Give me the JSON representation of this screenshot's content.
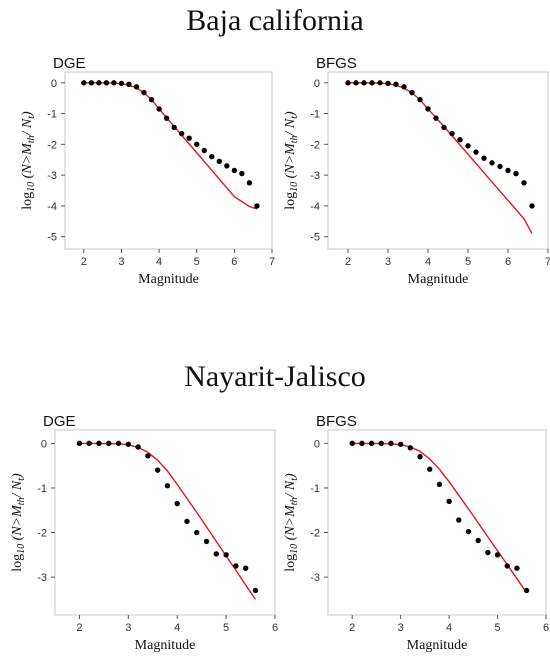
{
  "sections": [
    {
      "title": "Baja california"
    },
    {
      "title": "Nayarit-Jalisco"
    }
  ],
  "chart_data": [
    {
      "type": "scatter",
      "panel_label": "DGE",
      "xlabel": "Magnitude",
      "ylabel": "log10 (N>Mth/ Nt)",
      "xlim": [
        1.5,
        7
      ],
      "ylim": [
        -5.4,
        0.35
      ],
      "xticks": [
        2,
        3,
        4,
        5,
        6,
        7
      ],
      "yticks": [
        0,
        -1,
        -2,
        -3,
        -4,
        -5
      ],
      "points": {
        "color": "#000000",
        "x": [
          2.0,
          2.2,
          2.4,
          2.6,
          2.8,
          3.0,
          3.2,
          3.4,
          3.6,
          3.8,
          4.0,
          4.2,
          4.4,
          4.6,
          4.8,
          5.0,
          5.2,
          5.4,
          5.6,
          5.8,
          6.0,
          6.2,
          6.4,
          6.6
        ],
        "y": [
          0,
          0,
          0,
          0,
          0,
          -0.02,
          -0.05,
          -0.13,
          -0.32,
          -0.55,
          -0.85,
          -1.15,
          -1.45,
          -1.65,
          -1.8,
          -2.0,
          -2.2,
          -2.4,
          -2.55,
          -2.7,
          -2.85,
          -2.95,
          -3.25,
          -4.0
        ]
      },
      "fit": {
        "color": "#e8141c",
        "x": [
          2.0,
          2.4,
          2.8,
          3.0,
          3.2,
          3.4,
          3.6,
          3.8,
          4.0,
          4.4,
          4.8,
          5.2,
          5.6,
          6.0,
          6.4,
          6.6
        ],
        "y": [
          0,
          0,
          -0.01,
          -0.03,
          -0.08,
          -0.17,
          -0.33,
          -0.55,
          -0.85,
          -1.42,
          -1.99,
          -2.56,
          -3.13,
          -3.7,
          -4.02,
          -4.1
        ]
      }
    },
    {
      "type": "scatter",
      "panel_label": "BFGS",
      "xlabel": "Magnitude",
      "ylabel": "log10 (N>Mth/ Nt)",
      "xlim": [
        1.5,
        7
      ],
      "ylim": [
        -5.4,
        0.35
      ],
      "xticks": [
        2,
        3,
        4,
        5,
        6,
        7
      ],
      "yticks": [
        0,
        -1,
        -2,
        -3,
        -4,
        -5
      ],
      "points": {
        "color": "#000000",
        "x": [
          2.0,
          2.2,
          2.4,
          2.6,
          2.8,
          3.0,
          3.2,
          3.4,
          3.6,
          3.8,
          4.0,
          4.2,
          4.4,
          4.6,
          4.8,
          5.0,
          5.2,
          5.4,
          5.6,
          5.8,
          6.0,
          6.2,
          6.4,
          6.6
        ],
        "y": [
          0,
          0,
          0,
          0,
          0,
          -0.02,
          -0.05,
          -0.13,
          -0.32,
          -0.55,
          -0.85,
          -1.15,
          -1.45,
          -1.65,
          -1.85,
          -2.05,
          -2.25,
          -2.45,
          -2.6,
          -2.72,
          -2.85,
          -2.95,
          -3.25,
          -4.0
        ]
      },
      "fit": {
        "color": "#e8141c",
        "x": [
          2.0,
          2.4,
          2.8,
          3.0,
          3.2,
          3.4,
          3.6,
          3.8,
          4.0,
          4.4,
          4.8,
          5.2,
          5.6,
          6.0,
          6.4,
          6.6
        ],
        "y": [
          0,
          0,
          -0.01,
          -0.03,
          -0.08,
          -0.17,
          -0.33,
          -0.55,
          -0.85,
          -1.42,
          -2.02,
          -2.62,
          -3.22,
          -3.82,
          -4.42,
          -4.9
        ]
      }
    },
    {
      "type": "scatter",
      "panel_label": "DGE",
      "xlabel": "Magnitude",
      "ylabel": "log10 (N>Mth/ Nt)",
      "xlim": [
        1.5,
        6
      ],
      "ylim": [
        -3.85,
        0.3
      ],
      "xticks": [
        2,
        3,
        4,
        5,
        6
      ],
      "yticks": [
        0,
        -1,
        -2,
        -3
      ],
      "points": {
        "color": "#000000",
        "x": [
          2.0,
          2.2,
          2.4,
          2.6,
          2.8,
          3.0,
          3.2,
          3.4,
          3.6,
          3.8,
          4.0,
          4.2,
          4.4,
          4.6,
          4.8,
          5.0,
          5.2,
          5.4,
          5.6
        ],
        "y": [
          0,
          0,
          0,
          0,
          0,
          -0.02,
          -0.08,
          -0.28,
          -0.6,
          -0.95,
          -1.35,
          -1.75,
          -2.0,
          -2.2,
          -2.48,
          -2.5,
          -2.75,
          -2.8,
          -3.3
        ]
      },
      "fit": {
        "color": "#e8141c",
        "x": [
          2.0,
          2.4,
          2.8,
          3.0,
          3.2,
          3.4,
          3.6,
          3.8,
          4.0,
          4.4,
          4.8,
          5.2,
          5.6
        ],
        "y": [
          0,
          0,
          -0.01,
          -0.03,
          -0.09,
          -0.2,
          -0.38,
          -0.62,
          -0.92,
          -1.55,
          -2.2,
          -2.85,
          -3.5
        ]
      }
    },
    {
      "type": "scatter",
      "panel_label": "BFGS",
      "xlabel": "Magnitude",
      "ylabel": "log10 (N>Mth/ Nt)",
      "xlim": [
        1.5,
        6
      ],
      "ylim": [
        -3.85,
        0.3
      ],
      "xticks": [
        2,
        3,
        4,
        5,
        6
      ],
      "yticks": [
        0,
        -1,
        -2,
        -3
      ],
      "points": {
        "color": "#000000",
        "x": [
          2.0,
          2.2,
          2.4,
          2.6,
          2.8,
          3.0,
          3.2,
          3.4,
          3.6,
          3.8,
          4.0,
          4.2,
          4.4,
          4.6,
          4.8,
          5.0,
          5.2,
          5.4,
          5.6
        ],
        "y": [
          0,
          0,
          0,
          0,
          0,
          -0.02,
          -0.1,
          -0.3,
          -0.58,
          -0.92,
          -1.3,
          -1.72,
          -1.98,
          -2.18,
          -2.45,
          -2.5,
          -2.75,
          -2.8,
          -3.3
        ]
      },
      "fit": {
        "color": "#e8141c",
        "x": [
          2.0,
          2.4,
          2.8,
          3.0,
          3.2,
          3.4,
          3.6,
          3.8,
          4.0,
          4.4,
          4.8,
          5.2,
          5.6
        ],
        "y": [
          0,
          0,
          -0.01,
          -0.03,
          -0.08,
          -0.18,
          -0.35,
          -0.58,
          -0.86,
          -1.47,
          -2.1,
          -2.72,
          -3.35
        ]
      }
    }
  ]
}
